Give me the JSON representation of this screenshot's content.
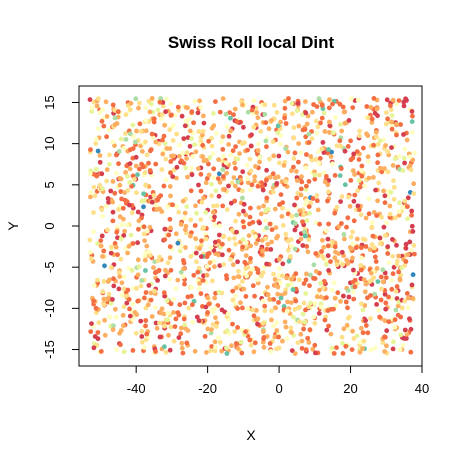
{
  "chart_data": {
    "type": "scatter",
    "title": "Swiss Roll local Dint",
    "xlabel": "X",
    "ylabel": "Y",
    "xlim": [
      -56,
      40
    ],
    "ylim": [
      -17,
      17
    ],
    "x_ticks": [
      -40,
      -20,
      0,
      20,
      40
    ],
    "y_ticks": [
      -15,
      -10,
      -5,
      0,
      5,
      10,
      15
    ],
    "x_tick_labels": [
      "-40",
      "-20",
      "0",
      "20",
      "40"
    ],
    "y_tick_labels": [
      "-15",
      "-10",
      "-5",
      "0",
      "5",
      "10",
      "15"
    ],
    "grid": false,
    "legend": "none",
    "color_scale": "Spectral",
    "palette": [
      "#d53e4f",
      "#f46d43",
      "#fdae61",
      "#fee08b",
      "#ffffbf",
      "#e6f598",
      "#abdda4",
      "#66c2a5",
      "#3288bd"
    ],
    "x_range_of_points": [
      -53,
      38
    ],
    "y_range_of_points": [
      -15.5,
      15.5
    ],
    "point_count": 2000
  }
}
